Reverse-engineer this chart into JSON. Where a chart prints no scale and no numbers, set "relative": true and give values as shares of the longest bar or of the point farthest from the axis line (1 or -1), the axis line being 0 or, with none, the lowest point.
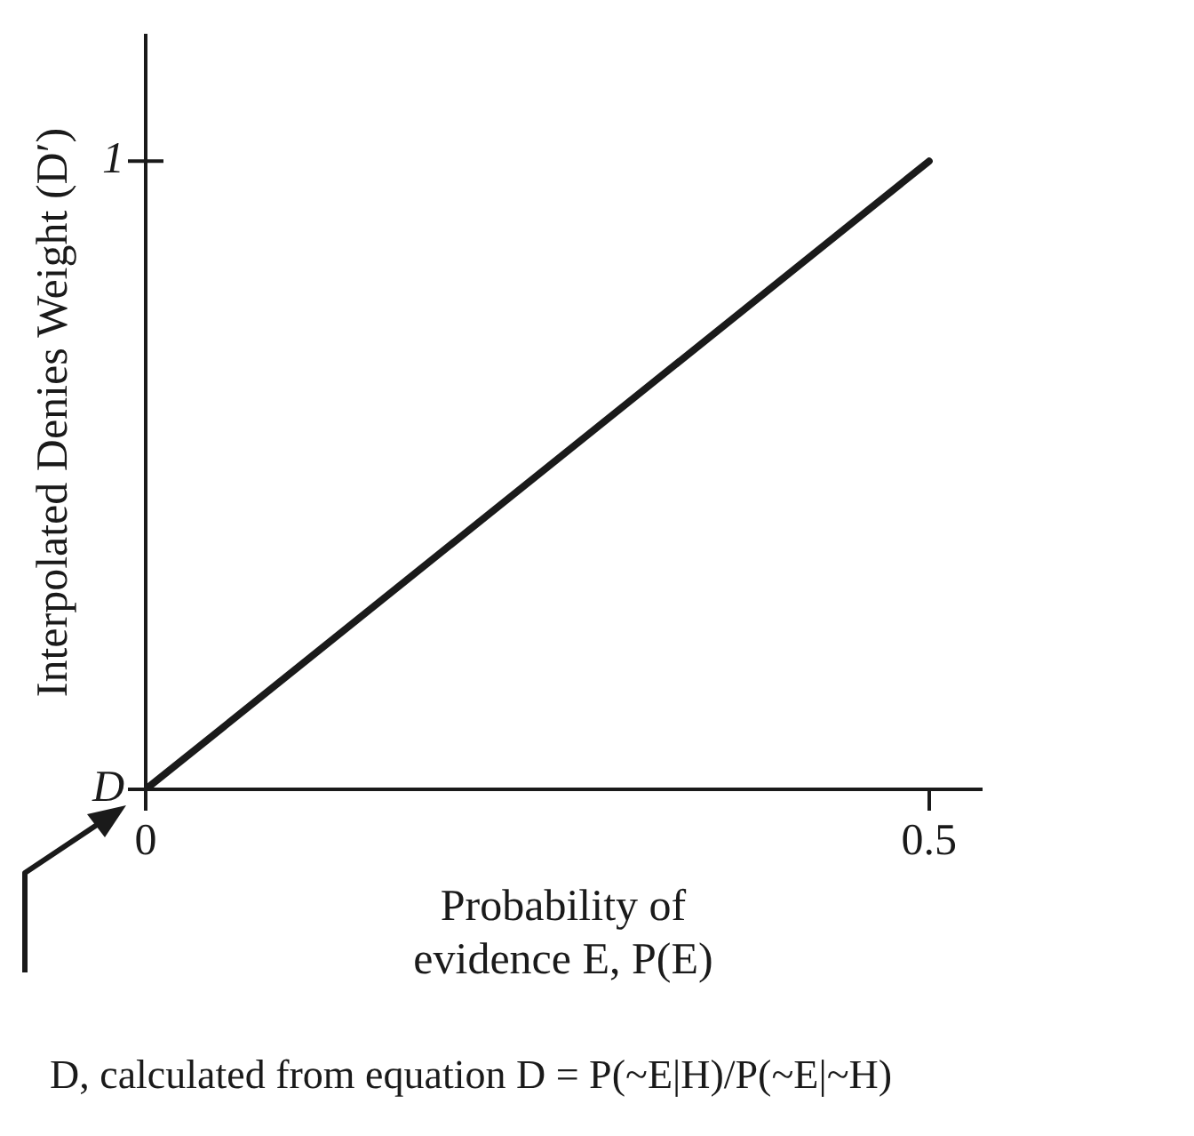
{
  "chart_data": {
    "type": "line",
    "xlabel": "Probability of\nevidence E, P(E)",
    "ylabel": "Interpolated Denies Weight (D′)",
    "x": [
      0,
      0.5
    ],
    "series": [
      {
        "color": "#1a1a1a",
        "values": [
          0,
          1
        ]
      }
    ],
    "xlim": [
      0,
      0.533
    ],
    "xticks": [
      0,
      0.5
    ],
    "relative": true,
    "grid": false,
    "legend": false,
    "marker": "none",
    "line_style": "solid",
    "annotations": [
      "D, calculated from equation D = P(~E|H)/P(~E|~H)",
      {
        "text": "D",
        "x": 0,
        "y": 0
      },
      "1"
    ]
  }
}
